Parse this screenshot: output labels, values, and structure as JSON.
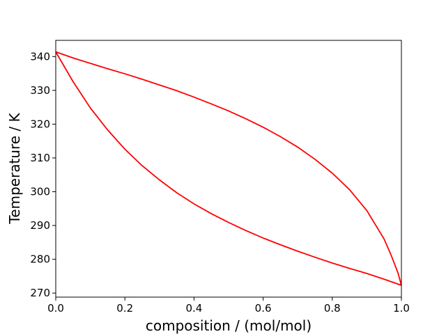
{
  "chart_data": {
    "type": "line",
    "xlabel": "composition / (mol/mol)",
    "ylabel": "Temperature / K",
    "xlim": [
      0.0,
      1.0
    ],
    "ylim": [
      268.8,
      344.8
    ],
    "x_ticks": [
      "0.0",
      "0.2",
      "0.4",
      "0.6",
      "0.8",
      "1.0"
    ],
    "y_ticks": [
      "270",
      "280",
      "290",
      "300",
      "310",
      "320",
      "330",
      "340"
    ],
    "grid": false,
    "line_color": "#ff0000",
    "series": [
      {
        "points": [
          [
            0.0,
            341.4
          ],
          [
            0.05,
            332.6
          ],
          [
            0.1,
            324.8
          ],
          [
            0.15,
            318.3
          ],
          [
            0.2,
            312.6
          ],
          [
            0.25,
            307.7
          ],
          [
            0.3,
            303.5
          ],
          [
            0.35,
            299.7
          ],
          [
            0.4,
            296.4
          ],
          [
            0.45,
            293.5
          ],
          [
            0.5,
            290.9
          ],
          [
            0.55,
            288.5
          ],
          [
            0.6,
            286.3
          ],
          [
            0.65,
            284.3
          ],
          [
            0.7,
            282.4
          ],
          [
            0.75,
            280.6
          ],
          [
            0.8,
            278.9
          ],
          [
            0.85,
            277.3
          ],
          [
            0.9,
            275.8
          ],
          [
            0.95,
            274.1
          ],
          [
            1.0,
            272.3
          ]
        ]
      },
      {
        "points": [
          [
            0.0,
            341.4
          ],
          [
            0.05,
            339.6
          ],
          [
            0.1,
            338.0
          ],
          [
            0.15,
            336.4
          ],
          [
            0.2,
            334.9
          ],
          [
            0.25,
            333.3
          ],
          [
            0.3,
            331.6
          ],
          [
            0.35,
            329.9
          ],
          [
            0.4,
            328.0
          ],
          [
            0.45,
            326.0
          ],
          [
            0.5,
            323.9
          ],
          [
            0.55,
            321.6
          ],
          [
            0.6,
            319.1
          ],
          [
            0.65,
            316.3
          ],
          [
            0.7,
            313.2
          ],
          [
            0.75,
            309.6
          ],
          [
            0.8,
            305.5
          ],
          [
            0.85,
            300.6
          ],
          [
            0.9,
            294.4
          ],
          [
            0.95,
            286.0
          ],
          [
            0.97,
            281.3
          ],
          [
            0.99,
            276.0
          ],
          [
            1.0,
            272.3
          ]
        ]
      }
    ]
  }
}
